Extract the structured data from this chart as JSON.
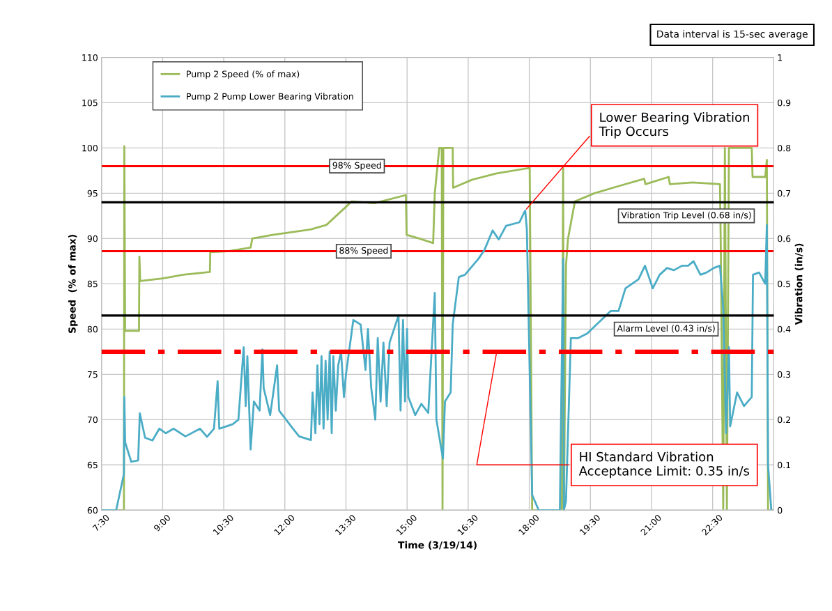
{
  "chart_data": {
    "type": "line",
    "xlabel": "Time (3/19/14)",
    "ylabel": "Speed  (% of max)",
    "y2label": "Vibration (in/s)",
    "xlim": [
      7.5,
      24
    ],
    "xticks": [
      {
        "value": 7.5,
        "label": "7:30"
      },
      {
        "value": 9,
        "label": "9:00"
      },
      {
        "value": 10.5,
        "label": "10:30"
      },
      {
        "value": 12,
        "label": "12:00"
      },
      {
        "value": 13.5,
        "label": "13:30"
      },
      {
        "value": 15,
        "label": "15:00"
      },
      {
        "value": 16.5,
        "label": "16:30"
      },
      {
        "value": 18,
        "label": "18:00"
      },
      {
        "value": 19.5,
        "label": "19:30"
      },
      {
        "value": 21,
        "label": "21:00"
      },
      {
        "value": 22.5,
        "label": "22:30"
      }
    ],
    "ylim": [
      60,
      110
    ],
    "yticks": [
      60,
      65,
      70,
      75,
      80,
      85,
      90,
      95,
      100,
      105,
      110
    ],
    "y2lim": [
      0,
      1
    ],
    "y2ticks": [
      0,
      0.1,
      0.2,
      0.3,
      0.4,
      0.5,
      0.6,
      0.7,
      0.8,
      0.9,
      1
    ],
    "grid": true,
    "legend": "top left",
    "series": [
      {
        "name": "Pump 2 Speed (% of max)",
        "color": "#9bbb59",
        "x": [
          7.5,
          8.05,
          8.06,
          8.08,
          8.42,
          8.43,
          8.45,
          9.0,
          9.5,
          10.16,
          10.17,
          10.6,
          11.16,
          11.2,
          11.7,
          12.63,
          13.02,
          13.5,
          13.64,
          14.2,
          14.97,
          14.99,
          15.3,
          15.64,
          15.68,
          15.79,
          15.85,
          15.87,
          15.89,
          16.12,
          16.13,
          16.6,
          17.2,
          18.01,
          18.07,
          18.8,
          18.83,
          18.85,
          18.9,
          18.95,
          19.12,
          19.6,
          20.2,
          20.82,
          20.85,
          21.42,
          21.45,
          22.01,
          22.68,
          22.7,
          22.76,
          22.8,
          22.85,
          22.9,
          23.46,
          23.48,
          23.79,
          23.83,
          23.86,
          24.0
        ],
        "values": [
          60,
          60,
          100.2,
          79.8,
          79.8,
          88,
          85.3,
          85.6,
          86,
          86.3,
          88.5,
          88.6,
          89,
          90,
          90.4,
          91,
          91.5,
          93.5,
          94.1,
          93.9,
          94.8,
          90.4,
          90.0,
          89.5,
          95,
          100,
          100,
          60,
          100,
          100,
          95.6,
          96.5,
          97.2,
          97.8,
          60,
          60,
          97.8,
          60,
          87,
          90,
          94.1,
          95,
          95.8,
          96.6,
          96.0,
          96.8,
          96.0,
          96.2,
          96.0,
          89,
          60,
          100,
          60,
          100,
          100,
          96.8,
          96.8,
          98.7,
          60,
          60
        ]
      },
      {
        "name": "Pump 2 Pump Lower Bearing Vibration",
        "color": "#4bacc6",
        "axis": "y2",
        "x": [
          7.5,
          7.86,
          8.05,
          8.06,
          8.08,
          8.23,
          8.4,
          8.44,
          8.57,
          8.75,
          8.92,
          9.08,
          9.27,
          9.56,
          9.92,
          10.09,
          10.26,
          10.35,
          10.39,
          10.72,
          10.86,
          10.99,
          11.04,
          11.08,
          11.16,
          11.24,
          11.38,
          11.45,
          11.48,
          11.64,
          11.81,
          11.86,
          12.2,
          12.35,
          12.64,
          12.68,
          12.75,
          12.8,
          12.85,
          12.9,
          12.95,
          13.0,
          13.05,
          13.1,
          13.15,
          13.19,
          13.25,
          13.31,
          13.38,
          13.45,
          13.5,
          13.68,
          13.86,
          13.98,
          14.04,
          14.12,
          14.22,
          14.28,
          14.35,
          14.42,
          14.5,
          14.57,
          14.79,
          14.84,
          14.9,
          14.95,
          15.0,
          15.03,
          15.2,
          15.35,
          15.52,
          15.68,
          15.72,
          15.88,
          15.93,
          16.07,
          16.12,
          16.27,
          16.42,
          16.75,
          16.9,
          17.1,
          17.25,
          17.43,
          17.76,
          17.86,
          17.9,
          17.94,
          18.07,
          18.23,
          18.75,
          18.83,
          18.85,
          18.9,
          19.02,
          19.2,
          19.42,
          20.0,
          20.19,
          20.36,
          20.68,
          20.84,
          21.03,
          21.2,
          21.38,
          21.55,
          21.75,
          21.9,
          22.03,
          22.2,
          22.35,
          22.53,
          22.68,
          22.76,
          22.83,
          22.9,
          22.93,
          23.1,
          23.27,
          23.46,
          23.49,
          23.64,
          23.79,
          23.83,
          23.86,
          23.94
        ],
        "values": [
          0,
          0,
          0.08,
          0.25,
          0.15,
          0.107,
          0.11,
          0.214,
          0.16,
          0.154,
          0.18,
          0.17,
          0.18,
          0.163,
          0.18,
          0.162,
          0.18,
          0.285,
          0.18,
          0.19,
          0.2,
          0.36,
          0.23,
          0.34,
          0.134,
          0.24,
          0.22,
          0.355,
          0.27,
          0.21,
          0.32,
          0.22,
          0.18,
          0.163,
          0.155,
          0.26,
          0.17,
          0.32,
          0.19,
          0.34,
          0.18,
          0.33,
          0.2,
          0.35,
          0.17,
          0.34,
          0.22,
          0.32,
          0.35,
          0.25,
          0.3,
          0.42,
          0.41,
          0.31,
          0.4,
          0.27,
          0.2,
          0.38,
          0.24,
          0.37,
          0.23,
          0.37,
          0.43,
          0.22,
          0.42,
          0.24,
          0.4,
          0.25,
          0.21,
          0.235,
          0.215,
          0.48,
          0.2,
          0.114,
          0.24,
          0.26,
          0.41,
          0.515,
          0.52,
          0.555,
          0.575,
          0.618,
          0.598,
          0.628,
          0.636,
          0.655,
          0.662,
          0.62,
          0.034,
          0,
          0,
          0.555,
          0,
          0.02,
          0.38,
          0.38,
          0.39,
          0.44,
          0.44,
          0.49,
          0.51,
          0.54,
          0.49,
          0.52,
          0.535,
          0.53,
          0.54,
          0.54,
          0.55,
          0.52,
          0.525,
          0.535,
          0.54,
          0.445,
          0.17,
          0.36,
          0.185,
          0.26,
          0.23,
          0.25,
          0.52,
          0.525,
          0.5,
          0.63,
          0.1,
          0
        ]
      }
    ],
    "ref_lines": [
      {
        "axis": "y",
        "value": 98,
        "label": "98% Speed",
        "color": "#ff0000",
        "line_style": "solid"
      },
      {
        "axis": "y",
        "value": 88.6,
        "label": "88% Speed",
        "color": "#ff0000",
        "line_style": "solid"
      },
      {
        "axis": "y2",
        "value": 0.68,
        "label": "Vibration Trip Level (0.68 in/s)",
        "color": "#000000",
        "line_style": "solid"
      },
      {
        "axis": "y2",
        "value": 0.43,
        "label": "Alarm Level (0.43 in/s)",
        "color": "#000000",
        "line_style": "solid"
      },
      {
        "axis": "y2",
        "value": 0.35,
        "label": "HI Standard Vibration\nAcceptance Limit: 0.35 in/s",
        "color": "#ff0000",
        "line_style": "dashdot"
      }
    ],
    "annotations": [
      "Data interval is 15-sec average",
      {
        "text": "Lower Bearing Vibration\nTrip Occurs",
        "x": 17.9,
        "y": 93.1
      }
    ]
  }
}
